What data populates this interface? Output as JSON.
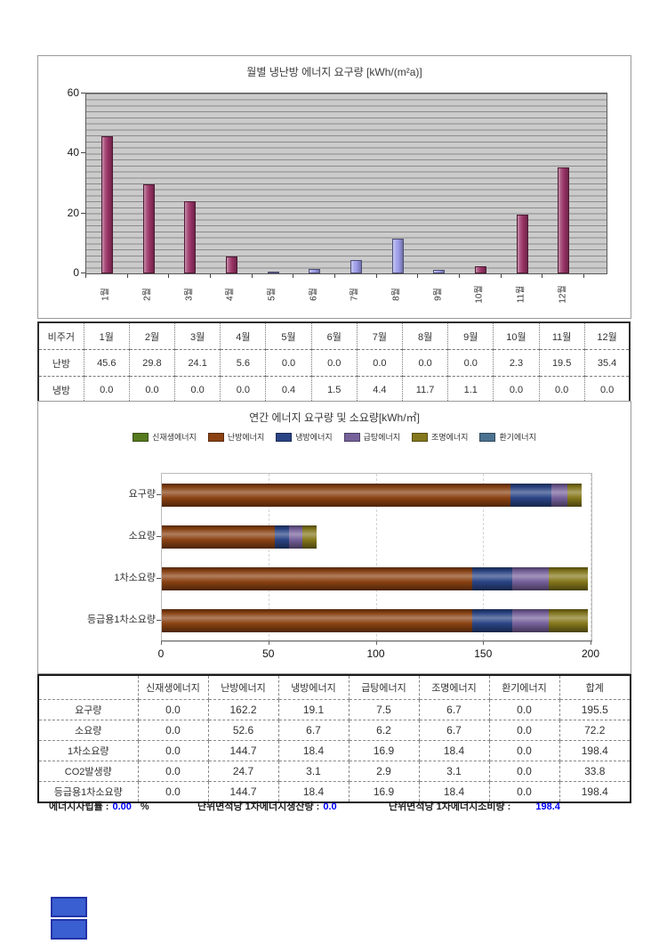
{
  "chart_data": [
    {
      "type": "bar",
      "title": "월별 냉난방 에너지 요구량 [kWh/(m²a)]",
      "categories": [
        "1월",
        "2월",
        "3월",
        "4월",
        "5월",
        "6월",
        "7월",
        "8월",
        "9월",
        "10월",
        "11월",
        "12월"
      ],
      "series": [
        {
          "name": "난방",
          "color": "#993366",
          "values": [
            45.6,
            29.8,
            24.1,
            5.6,
            0.0,
            0.0,
            0.0,
            0.0,
            0.0,
            2.3,
            19.5,
            35.4
          ]
        },
        {
          "name": "냉방",
          "color": "#9b9be8",
          "values": [
            0.0,
            0.0,
            0.0,
            0.0,
            0.4,
            1.5,
            4.4,
            11.7,
            1.1,
            0.0,
            0.0,
            0.0
          ]
        }
      ],
      "ylim": [
        0,
        60
      ],
      "yticks": [
        0,
        20,
        40,
        60
      ],
      "plot_bg": "#cbcbcb",
      "grid": "horizontal-minor",
      "legend_position": "none"
    },
    {
      "type": "stacked-bar-horizontal",
      "title": "연간 에너지 요구량 및 소요량[kWh/㎡]",
      "categories": [
        "요구량",
        "소요량",
        "1차소요량",
        "등급용1차소요량"
      ],
      "series": [
        {
          "name": "신재생에너지",
          "color": "#567a1e",
          "values": [
            0.0,
            0.0,
            0.0,
            0.0
          ]
        },
        {
          "name": "난방에너지",
          "color": "#8b4212",
          "values": [
            162.2,
            52.6,
            144.7,
            144.7
          ]
        },
        {
          "name": "냉방에너지",
          "color": "#2a4485",
          "values": [
            19.1,
            6.7,
            18.4,
            18.4
          ]
        },
        {
          "name": "급탕에너지",
          "color": "#76619b",
          "values": [
            7.5,
            6.2,
            16.9,
            16.9
          ]
        },
        {
          "name": "조명에너지",
          "color": "#85781c",
          "values": [
            6.7,
            6.7,
            18.4,
            18.4
          ]
        },
        {
          "name": "환기에너지",
          "color": "#4c7290",
          "values": [
            0.0,
            0.0,
            0.0,
            0.0
          ]
        }
      ],
      "xlim": [
        0,
        200
      ],
      "xticks": [
        0,
        50,
        100,
        150,
        200
      ],
      "grid": "vertical-dashed",
      "legend_position": "top"
    }
  ],
  "monthly_table": {
    "header": [
      "비주거",
      "1월",
      "2월",
      "3월",
      "4월",
      "5월",
      "6월",
      "7월",
      "8월",
      "9월",
      "10월",
      "11월",
      "12월"
    ],
    "rows": [
      {
        "label": "난방",
        "values": [
          "45.6",
          "29.8",
          "24.1",
          "5.6",
          "0.0",
          "0.0",
          "0.0",
          "0.0",
          "0.0",
          "2.3",
          "19.5",
          "35.4"
        ]
      },
      {
        "label": "냉방",
        "values": [
          "0.0",
          "0.0",
          "0.0",
          "0.0",
          "0.4",
          "1.5",
          "4.4",
          "11.7",
          "1.1",
          "0.0",
          "0.0",
          "0.0"
        ]
      }
    ]
  },
  "annual_table": {
    "header": [
      "",
      "신재생에너지",
      "난방에너지",
      "냉방에너지",
      "급탕에너지",
      "조명에너지",
      "환기에너지",
      "합계"
    ],
    "rows": [
      {
        "label": "요구량",
        "values": [
          "0.0",
          "162.2",
          "19.1",
          "7.5",
          "6.7",
          "0.0",
          "195.5"
        ]
      },
      {
        "label": "소요량",
        "values": [
          "0.0",
          "52.6",
          "6.7",
          "6.2",
          "6.7",
          "0.0",
          "72.2"
        ]
      },
      {
        "label": "1차소요량",
        "values": [
          "0.0",
          "144.7",
          "18.4",
          "16.9",
          "18.4",
          "0.0",
          "198.4"
        ]
      },
      {
        "label": "CO2발생량",
        "values": [
          "0.0",
          "24.7",
          "3.1",
          "2.9",
          "3.1",
          "0.0",
          "33.8"
        ]
      },
      {
        "label": "등급용1차소요량",
        "values": [
          "0.0",
          "144.7",
          "18.4",
          "16.9",
          "18.4",
          "0.0",
          "198.4"
        ]
      }
    ]
  },
  "summary": {
    "value_color": "#0000fe",
    "items": [
      {
        "label": "에너지자립률 :",
        "value": "0.00",
        "suffix": "%"
      },
      {
        "label": "단위면적당 1차에너지생산량 :",
        "value": "0.0",
        "suffix": ""
      },
      {
        "label": "단위면적당 1차에너지소비량 :",
        "value": "198.4",
        "suffix": ""
      }
    ]
  },
  "bottom_buttons": {
    "fill": "#3a5fd0",
    "border": "#2233a8",
    "items": [
      {
        "name": "blue-button-1"
      },
      {
        "name": "blue-button-2"
      }
    ]
  }
}
